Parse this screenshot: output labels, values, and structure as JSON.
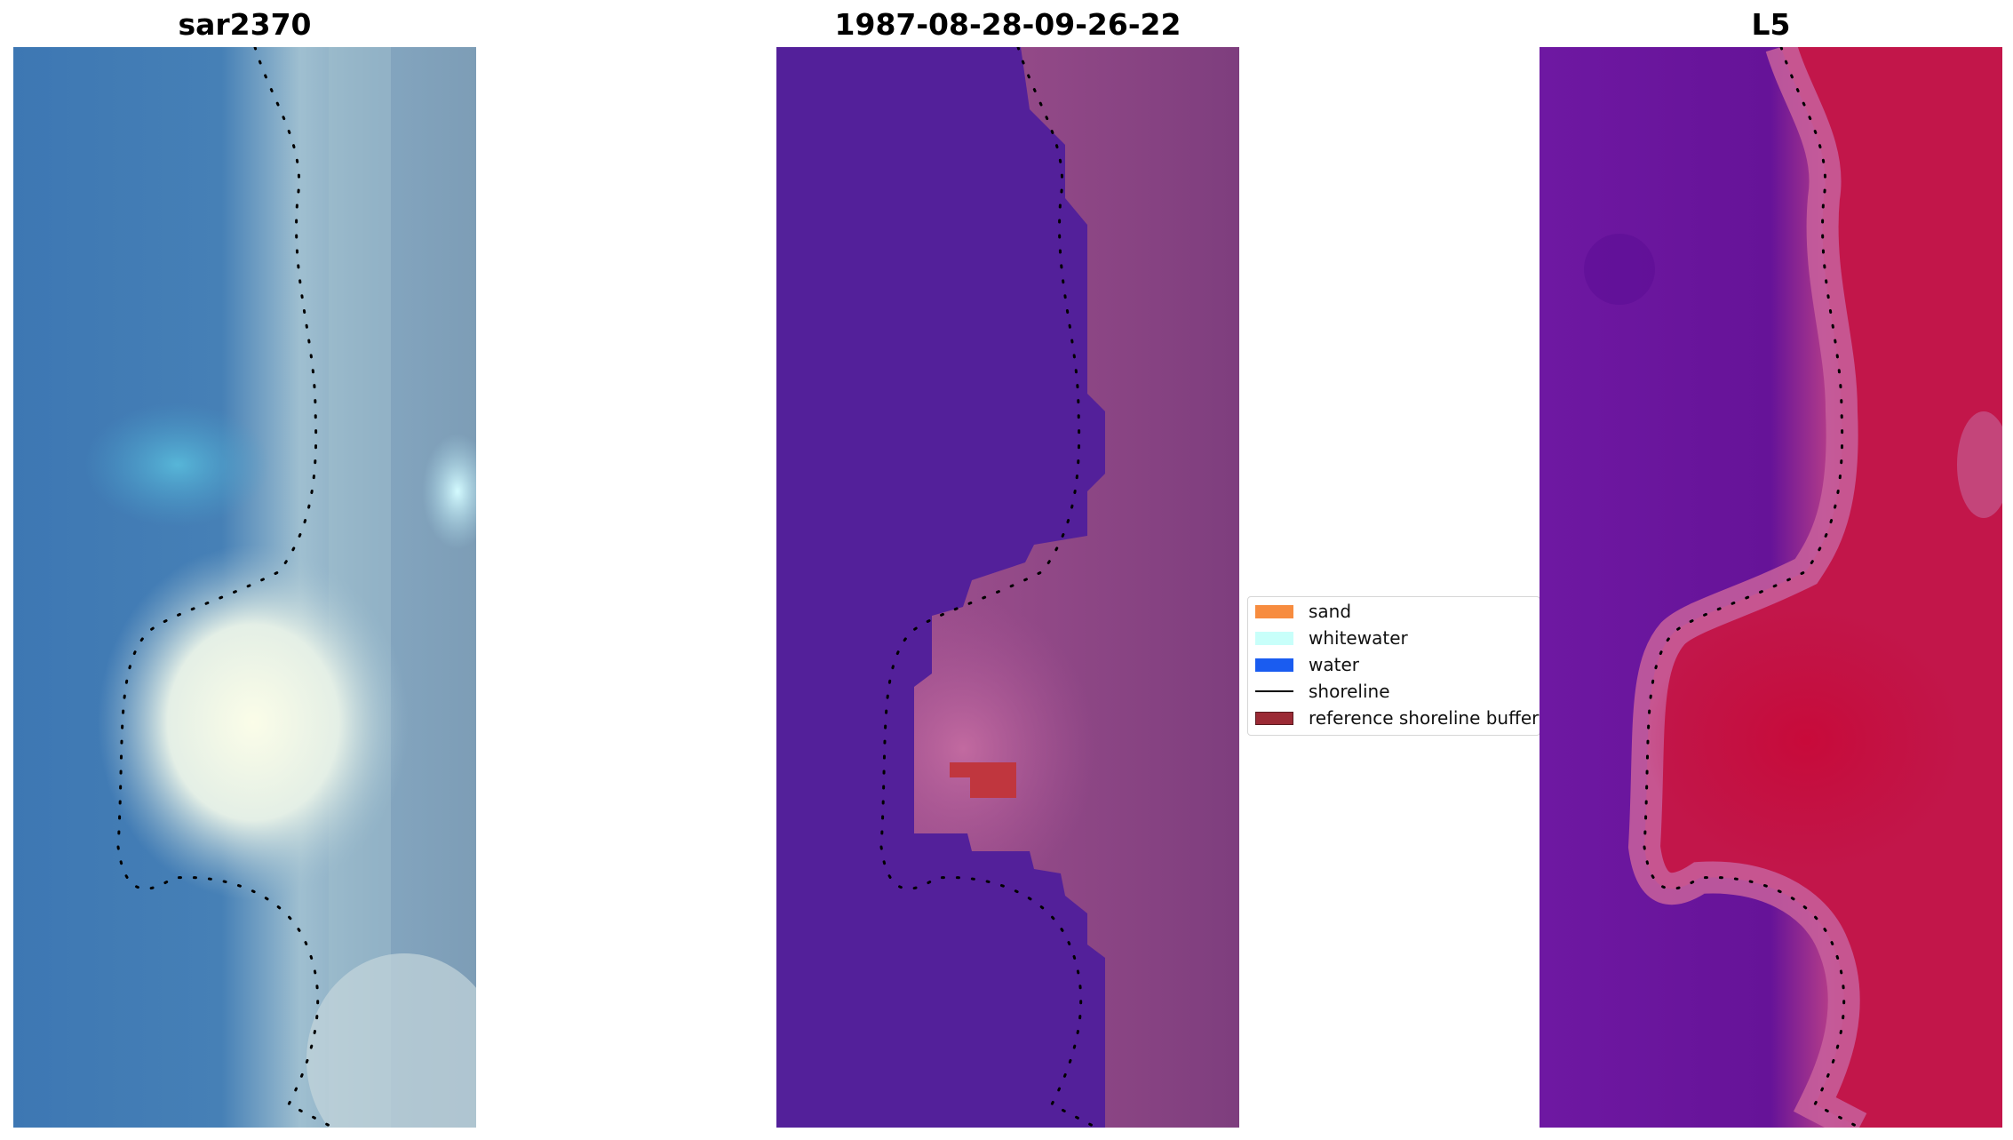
{
  "panels": [
    {
      "title": "sar2370"
    },
    {
      "title": "1987-08-28-09-26-22"
    },
    {
      "title": "L5"
    }
  ],
  "legend": {
    "items": [
      {
        "label": "sand",
        "color": "#f78c3f",
        "kind": "patch"
      },
      {
        "label": "whitewater",
        "color": "#c8fffa",
        "kind": "patch"
      },
      {
        "label": "water",
        "color": "#1a5cf0",
        "kind": "patch"
      },
      {
        "label": "shoreline",
        "color": "#000000",
        "kind": "line"
      },
      {
        "label": "reference shoreline buffer",
        "color": "#9b2a35",
        "kind": "patch"
      }
    ]
  },
  "colors": {
    "rgb_water": "#3d78b4",
    "rgb_land": "#8fb0c8",
    "class_water": "#53209a",
    "class_land": "#9a4a8a",
    "index_low": "#6a14a0",
    "index_high": "#c20e3c",
    "buffer_patch": "#c0363e"
  }
}
